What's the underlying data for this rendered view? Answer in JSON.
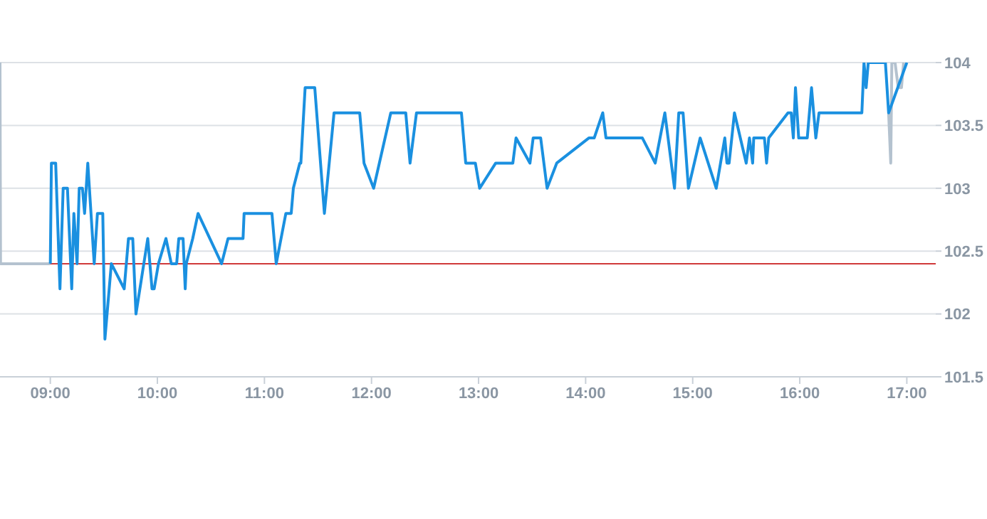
{
  "chart_data": {
    "type": "line",
    "xlim": [
      8.53,
      17.27
    ],
    "ylim": [
      101.5,
      104
    ],
    "xticks": [
      {
        "value": 9,
        "label": "09:00"
      },
      {
        "value": 10,
        "label": "10:00"
      },
      {
        "value": 11,
        "label": "11:00"
      },
      {
        "value": 12,
        "label": "12:00"
      },
      {
        "value": 13,
        "label": "13:00"
      },
      {
        "value": 14,
        "label": "14:00"
      },
      {
        "value": 15,
        "label": "15:00"
      },
      {
        "value": 16,
        "label": "16:00"
      },
      {
        "value": 17,
        "label": "17:00"
      }
    ],
    "yticks": [
      101.5,
      102,
      102.5,
      103,
      103.5,
      104
    ],
    "grid": "y",
    "marker": "none",
    "line_style": "solid",
    "ref_lines": [
      {
        "axis": "y",
        "value": 102.4,
        "color": "#d0393b"
      }
    ],
    "series": [
      {
        "color": "#b4c2cf",
        "x": [
          8.53,
          8.535,
          9.0,
          null,
          16.83,
          16.85,
          16.86,
          16.89,
          16.92,
          16.95,
          16.97
        ],
        "values": [
          104.0,
          102.4,
          102.4,
          null,
          103.6,
          103.2,
          104.0,
          104.0,
          103.8,
          103.8,
          104.0
        ]
      },
      {
        "color": "#1a90e0",
        "x": [
          9.0,
          9.01,
          9.05,
          9.09,
          9.12,
          9.16,
          9.2,
          9.22,
          9.25,
          9.27,
          9.3,
          9.32,
          9.35,
          9.41,
          9.44,
          9.49,
          9.51,
          9.57,
          9.69,
          9.73,
          9.77,
          9.8,
          9.91,
          9.95,
          9.97,
          10.01,
          10.08,
          10.13,
          10.18,
          10.2,
          10.24,
          10.26,
          10.27,
          10.33,
          10.38,
          10.6,
          10.66,
          10.8,
          10.81,
          11.07,
          11.11,
          11.2,
          11.25,
          11.27,
          11.33,
          11.34,
          11.38,
          11.47,
          11.56,
          11.65,
          11.89,
          11.93,
          12.02,
          12.18,
          12.32,
          12.36,
          12.42,
          12.84,
          12.88,
          12.97,
          13.01,
          13.16,
          13.32,
          13.35,
          13.48,
          13.51,
          13.58,
          13.64,
          13.73,
          14.03,
          14.08,
          14.16,
          14.19,
          14.53,
          14.65,
          14.74,
          14.83,
          14.87,
          14.91,
          14.96,
          15.07,
          15.22,
          15.3,
          15.32,
          15.34,
          15.39,
          15.5,
          15.53,
          15.56,
          15.57,
          15.67,
          15.69,
          15.71,
          15.89,
          15.92,
          15.94,
          15.96,
          15.99,
          16.07,
          16.11,
          16.15,
          16.18,
          16.58,
          16.6,
          16.62,
          16.64,
          16.8,
          16.83,
          17.0
        ],
        "values": [
          102.4,
          103.2,
          103.2,
          102.2,
          103.0,
          103.0,
          102.2,
          102.8,
          102.4,
          103.0,
          103.0,
          102.8,
          103.2,
          102.4,
          102.8,
          102.8,
          101.8,
          102.4,
          102.2,
          102.6,
          102.6,
          102.0,
          102.6,
          102.2,
          102.2,
          102.4,
          102.6,
          102.4,
          102.4,
          102.6,
          102.6,
          102.2,
          102.4,
          102.6,
          102.8,
          102.4,
          102.6,
          102.6,
          102.8,
          102.8,
          102.4,
          102.8,
          102.8,
          103.0,
          103.2,
          103.2,
          103.8,
          103.8,
          102.8,
          103.6,
          103.6,
          103.2,
          103.0,
          103.6,
          103.6,
          103.2,
          103.6,
          103.6,
          103.2,
          103.2,
          103.0,
          103.2,
          103.2,
          103.4,
          103.2,
          103.4,
          103.4,
          103.0,
          103.2,
          103.4,
          103.4,
          103.6,
          103.4,
          103.4,
          103.2,
          103.6,
          103.0,
          103.6,
          103.6,
          103.0,
          103.4,
          103.0,
          103.4,
          103.2,
          103.2,
          103.6,
          103.2,
          103.4,
          103.2,
          103.4,
          103.4,
          103.2,
          103.4,
          103.6,
          103.6,
          103.4,
          103.8,
          103.4,
          103.4,
          103.8,
          103.4,
          103.6,
          103.6,
          104.0,
          103.8,
          104.0,
          104.0,
          103.6,
          104.0
        ]
      }
    ]
  }
}
